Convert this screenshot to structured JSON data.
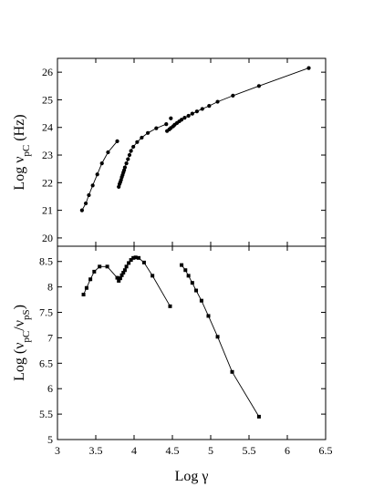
{
  "chart_data": [
    {
      "type": "line",
      "xlabel": "Log γ",
      "ylabel": "Log ν_pC  (Hz)",
      "xlim": [
        3,
        6.5
      ],
      "ylim": [
        19.7,
        26.5
      ],
      "xticks": [
        "3",
        "3.5",
        "4",
        "4.5",
        "5",
        "5.5",
        "6",
        "6.5"
      ],
      "yticks": [
        "20",
        "21",
        "22",
        "23",
        "24",
        "25",
        "26"
      ],
      "marker": "circle",
      "series": [
        {
          "x": [
            3.32,
            3.37,
            3.41,
            3.46,
            3.52,
            3.58,
            3.66,
            3.78
          ],
          "y": [
            21.0,
            21.25,
            21.55,
            21.9,
            22.3,
            22.7,
            23.1,
            23.5
          ]
        },
        {
          "x": [
            3.8,
            3.81,
            3.82,
            3.83,
            3.84,
            3.85,
            3.86,
            3.87,
            3.88,
            3.9,
            3.92,
            3.94,
            3.96,
            3.99,
            4.04,
            4.1,
            4.18,
            4.29,
            4.42
          ],
          "y": [
            21.85,
            21.95,
            22.02,
            22.1,
            22.2,
            22.28,
            22.37,
            22.45,
            22.55,
            22.7,
            22.85,
            23.0,
            23.15,
            23.3,
            23.47,
            23.63,
            23.8,
            23.97,
            24.12
          ]
        },
        {
          "x": [
            4.43,
            4.46,
            4.48,
            4.51,
            4.53,
            4.56,
            4.59,
            4.62,
            4.66,
            4.71,
            4.76,
            4.82,
            4.89,
            4.98,
            5.09,
            5.29,
            5.63,
            6.28
          ],
          "y": [
            23.87,
            23.93,
            23.98,
            24.04,
            24.1,
            24.16,
            24.22,
            24.28,
            24.35,
            24.42,
            24.5,
            24.58,
            24.67,
            24.78,
            24.93,
            25.15,
            25.5,
            26.15
          ]
        },
        {
          "x": [
            4.48
          ],
          "y": [
            24.33
          ]
        }
      ]
    },
    {
      "type": "line",
      "xlabel": "Log γ",
      "ylabel": "Log (ν_pC/ν_pS)",
      "xlim": [
        3,
        6.5
      ],
      "ylim": [
        5,
        8.8
      ],
      "xticks": [
        "3",
        "3.5",
        "4",
        "4.5",
        "5",
        "5.5",
        "6",
        "6.5"
      ],
      "yticks": [
        "5",
        "5.5",
        "6",
        "6.5",
        "7",
        "7.5",
        "8",
        "8.5"
      ],
      "marker": "square",
      "series": [
        {
          "x": [
            3.34,
            3.38,
            3.43,
            3.48,
            3.55,
            3.65,
            3.78,
            3.8,
            3.82,
            3.84,
            3.86,
            3.88,
            3.9,
            3.93,
            3.96,
            3.99,
            4.02,
            4.06,
            4.13,
            4.24,
            4.47
          ],
          "y": [
            7.85,
            7.98,
            8.15,
            8.3,
            8.4,
            8.4,
            8.18,
            8.12,
            8.17,
            8.23,
            8.28,
            8.33,
            8.4,
            8.47,
            8.53,
            8.57,
            8.58,
            8.57,
            8.48,
            8.22,
            7.62
          ]
        },
        {
          "x": [
            4.62,
            4.67,
            4.71,
            4.76,
            4.81,
            4.88,
            4.97,
            5.09,
            5.28,
            5.63
          ],
          "y": [
            8.43,
            8.33,
            8.22,
            8.08,
            7.93,
            7.73,
            7.43,
            7.02,
            6.33,
            5.45
          ]
        }
      ]
    }
  ]
}
